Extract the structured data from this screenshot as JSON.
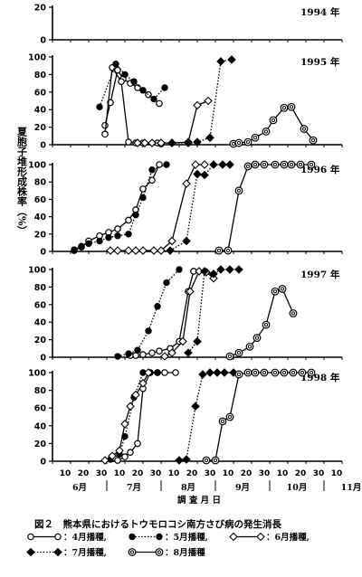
{
  "figure": {
    "ylabel": "夏胞子堆形成株率（%）",
    "xlabel": "調 査 月 日",
    "caption": "図２　熊本県におけるトウモロコシ南方さび病の発生消長",
    "legend": [
      {
        "series": "4月播種",
        "label": "：4月播種,",
        "marker": "open-circle",
        "dash": "solid"
      },
      {
        "series": "5月播種",
        "label": "：5月播種,",
        "marker": "filled-circle",
        "dash": "dotted"
      },
      {
        "series": "6月播種",
        "label": "：6月播種,",
        "marker": "open-diamond",
        "dash": "solid"
      },
      {
        "series": "7月播種",
        "label": "：7月播種,",
        "marker": "filled-diamond",
        "dash": "dotted"
      },
      {
        "series": "8月播種",
        "label": "：8月播種",
        "marker": "double-circle",
        "dash": "solid"
      }
    ],
    "x_ticks": [
      "10",
      "20",
      "30",
      "10",
      "20",
      "30",
      "10",
      "20",
      "30",
      "10",
      "20",
      "30",
      "10",
      "20",
      "30",
      "10"
    ],
    "months": [
      "6月",
      "7月",
      "8月",
      "9月",
      "10月",
      "11月"
    ]
  },
  "chart_data": [
    {
      "type": "line",
      "title": "1994 年",
      "ylim": [
        0,
        20
      ],
      "yticks": [
        0,
        20
      ],
      "series": []
    },
    {
      "type": "line",
      "title": "1995 年",
      "ylim": [
        0,
        100
      ],
      "yticks": [
        0,
        20,
        40,
        60,
        80,
        100
      ],
      "series": [
        {
          "name": "4月播種",
          "x": [
            2.9,
            3.2,
            3.6,
            3.9,
            4.3,
            4.7,
            5.3,
            5.9
          ],
          "y": [
            22,
            48,
            85,
            75,
            70,
            65,
            57,
            47
          ]
        },
        {
          "name": "4月播種",
          "x": [
            2.9,
            3.3,
            3.8,
            4.2,
            4.6,
            5.0,
            5.8,
            6.0
          ],
          "y": [
            12,
            88,
            72,
            3,
            2,
            2,
            2,
            1
          ]
        },
        {
          "name": "5月播種",
          "x": [
            2.6,
            3.5,
            4.0,
            4.5,
            5.0,
            5.6,
            6.2
          ],
          "y": [
            43,
            92,
            80,
            72,
            62,
            52,
            65
          ]
        },
        {
          "name": "6月播種",
          "x": [
            4.7,
            5.1,
            5.5,
            6.0,
            6.6,
            7.5,
            8.0,
            8.6
          ],
          "y": [
            2,
            2,
            2,
            2,
            2,
            3,
            45,
            50
          ]
        },
        {
          "name": "7月播種",
          "x": [
            6.6,
            7.5,
            8.0,
            8.7,
            9.3,
            9.9
          ],
          "y": [
            2,
            2,
            3,
            8,
            95,
            97
          ]
        },
        {
          "name": "8月播種",
          "x": [
            10.0,
            10.3,
            10.8,
            11.2,
            11.8,
            12.2,
            12.8,
            13.2,
            13.9,
            14.4
          ],
          "y": [
            1,
            2,
            3,
            8,
            15,
            28,
            42,
            43,
            18,
            5
          ]
        }
      ]
    },
    {
      "type": "line",
      "title": "1996 年",
      "ylim": [
        0,
        100
      ],
      "yticks": [
        0,
        20,
        40,
        60,
        80,
        100
      ],
      "series": [
        {
          "name": "4月播種",
          "x": [
            1.2,
            1.6,
            2.0,
            2.6,
            3.1,
            3.6,
            4.2,
            4.6,
            5.0,
            5.5,
            5.9
          ],
          "y": [
            1,
            5,
            12,
            18,
            22,
            26,
            36,
            48,
            72,
            82,
            100
          ]
        },
        {
          "name": "5月播種",
          "x": [
            1.2,
            1.6,
            2.0,
            2.6,
            3.1,
            3.6,
            4.2,
            4.6,
            5.0,
            5.5,
            6.3
          ],
          "y": [
            2,
            6,
            9,
            12,
            16,
            18,
            20,
            42,
            62,
            94,
            100
          ]
        },
        {
          "name": "6月播種",
          "x": [
            3.2,
            3.6,
            4.2,
            4.6,
            5.0,
            5.6,
            6.0,
            6.6,
            7.4,
            7.9,
            8.4
          ],
          "y": [
            1,
            1,
            1,
            1,
            1,
            1,
            1,
            12,
            78,
            100,
            100
          ]
        },
        {
          "name": "7月播種",
          "x": [
            6.5,
            7.4,
            8.0,
            8.4,
            8.9,
            9.4,
            9.8
          ],
          "y": [
            1,
            12,
            89,
            88,
            100,
            100,
            100
          ]
        },
        {
          "name": "8月播種",
          "x": [
            9.2,
            9.7,
            10.3,
            10.8,
            11.2,
            11.7,
            12.3,
            12.8,
            13.2,
            13.7,
            14.3
          ],
          "y": [
            1,
            1,
            70,
            98,
            100,
            100,
            100,
            100,
            100,
            100,
            100
          ]
        }
      ]
    },
    {
      "type": "line",
      "title": "1997 年",
      "ylim": [
        0,
        100
      ],
      "yticks": [
        0,
        20,
        40,
        60,
        80,
        100
      ],
      "series": [
        {
          "name": "4月播種",
          "x": [
            4.3,
            4.6,
            5.0,
            5.5,
            5.9,
            6.5,
            7.0,
            7.5,
            7.8
          ],
          "y": [
            2,
            2,
            3,
            5,
            7,
            10,
            18,
            75,
            98
          ]
        },
        {
          "name": "5月播種",
          "x": [
            3.6,
            4.2,
            4.7,
            5.3,
            5.8,
            6.3,
            7.0
          ],
          "y": [
            1,
            4,
            8,
            30,
            58,
            85,
            100
          ]
        },
        {
          "name": "6月播種",
          "x": [
            6.2,
            6.6,
            7.2,
            7.6,
            8.1,
            8.5,
            8.9
          ],
          "y": [
            1,
            5,
            18,
            75,
            98,
            97,
            90
          ]
        },
        {
          "name": "7月播種",
          "x": [
            7.5,
            8.0,
            8.4,
            8.9,
            9.3,
            9.8,
            10.3
          ],
          "y": [
            5,
            18,
            98,
            95,
            100,
            100,
            100
          ]
        },
        {
          "name": "8月播種",
          "x": [
            9.8,
            10.3,
            10.9,
            11.3,
            11.8,
            12.3,
            12.7,
            13.3
          ],
          "y": [
            1,
            5,
            12,
            22,
            37,
            75,
            78,
            50
          ]
        }
      ]
    },
    {
      "type": "line",
      "title": "1998 年",
      "ylim": [
        0,
        100
      ],
      "yticks": [
        0,
        20,
        40,
        60,
        80,
        100
      ],
      "series": [
        {
          "name": "4月播種",
          "x": [
            3.6,
            4.0,
            4.3,
            4.7,
            5.0,
            5.4,
            5.8,
            6.2,
            6.8
          ],
          "y": [
            1,
            5,
            10,
            20,
            82,
            100,
            100,
            100,
            100
          ]
        },
        {
          "name": "5月播種",
          "x": [
            3.2,
            3.7,
            4.0,
            4.5,
            5.0,
            5.4,
            5.8
          ],
          "y": [
            2,
            8,
            28,
            72,
            100,
            100,
            100
          ]
        },
        {
          "name": "6月播種",
          "x": [
            2.9,
            3.3,
            3.7,
            4.0,
            4.3,
            4.6,
            5.0,
            5.3
          ],
          "y": [
            1,
            6,
            12,
            42,
            62,
            75,
            88,
            100
          ]
        },
        {
          "name": "7月播種",
          "x": [
            7.0,
            7.4,
            7.9,
            8.3,
            8.7,
            9.1,
            9.5,
            10.0
          ],
          "y": [
            1,
            2,
            62,
            98,
            100,
            100,
            100,
            100
          ]
        },
        {
          "name": "8月播種",
          "x": [
            8.5,
            9.0,
            9.4,
            9.8,
            10.3,
            10.8,
            11.2,
            11.7,
            12.3,
            12.8,
            13.3,
            13.8,
            14.3
          ],
          "y": [
            1,
            1,
            45,
            50,
            98,
            100,
            100,
            100,
            100,
            100,
            100,
            100,
            100
          ]
        }
      ]
    }
  ]
}
